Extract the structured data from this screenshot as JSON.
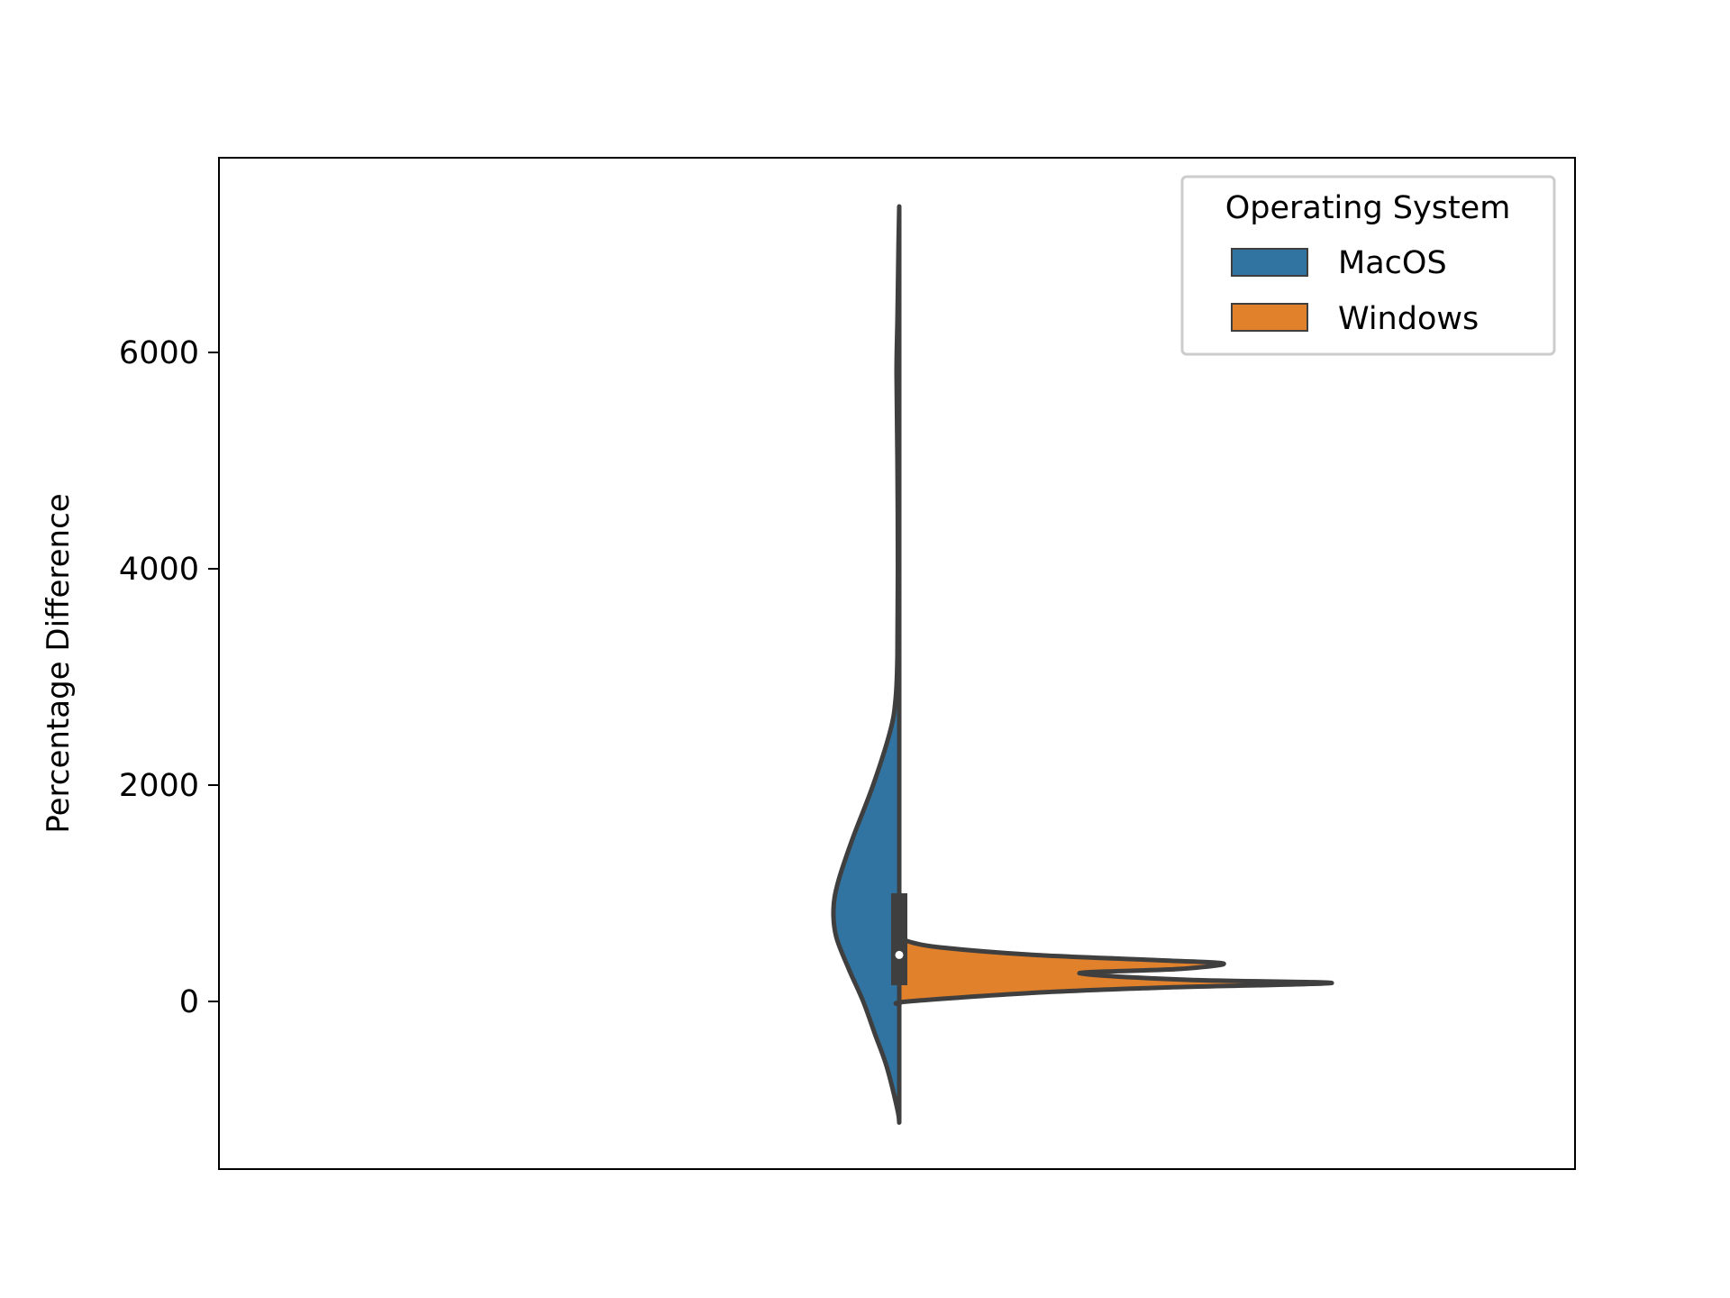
{
  "chart_data": {
    "type": "violin",
    "split": true,
    "xlabel": "",
    "ylabel": "Percentage Difference",
    "ylim": [
      -1550,
      7800
    ],
    "yticks": [
      0,
      2000,
      4000,
      6000
    ],
    "tick_labels": [
      "0",
      "2000",
      "4000",
      "6000"
    ],
    "grid": false,
    "legend": {
      "title": "Operating System",
      "placement": "top-right",
      "entries": [
        "MacOS",
        "Windows"
      ]
    },
    "colors": {
      "MacOS": "#3274a1",
      "Windows": "#e1812c",
      "outline": "#3f3f3f"
    },
    "series": [
      {
        "name": "MacOS",
        "side": "left",
        "density_profile": [
          [
            -1120,
            0.0
          ],
          [
            -1000,
            0.02
          ],
          [
            -600,
            0.14
          ],
          [
            -300,
            0.27
          ],
          [
            0,
            0.4
          ],
          [
            300,
            0.56
          ],
          [
            600,
            0.7
          ],
          [
            850,
            0.73
          ],
          [
            1100,
            0.68
          ],
          [
            1500,
            0.52
          ],
          [
            2000,
            0.29
          ],
          [
            2500,
            0.1
          ],
          [
            2800,
            0.04
          ],
          [
            3200,
            0.02
          ],
          [
            4000,
            0.015
          ],
          [
            5000,
            0.02
          ],
          [
            5800,
            0.03
          ],
          [
            6300,
            0.02
          ],
          [
            7000,
            0.008
          ],
          [
            7350,
            0.0
          ]
        ]
      },
      {
        "name": "Windows",
        "side": "right",
        "density_profile": [
          [
            -30,
            0.0
          ],
          [
            0,
            0.1
          ],
          [
            80,
            1.5
          ],
          [
            130,
            3.0
          ],
          [
            170,
            4.8
          ],
          [
            200,
            3.2
          ],
          [
            260,
            2.0
          ],
          [
            300,
            3.1
          ],
          [
            350,
            3.6
          ],
          [
            380,
            2.9
          ],
          [
            430,
            1.5
          ],
          [
            500,
            0.45
          ],
          [
            550,
            0.12
          ],
          [
            590,
            0.0
          ]
        ]
      }
    ],
    "box": {
      "q1": 150,
      "median": 430,
      "q3": 1000
    }
  }
}
